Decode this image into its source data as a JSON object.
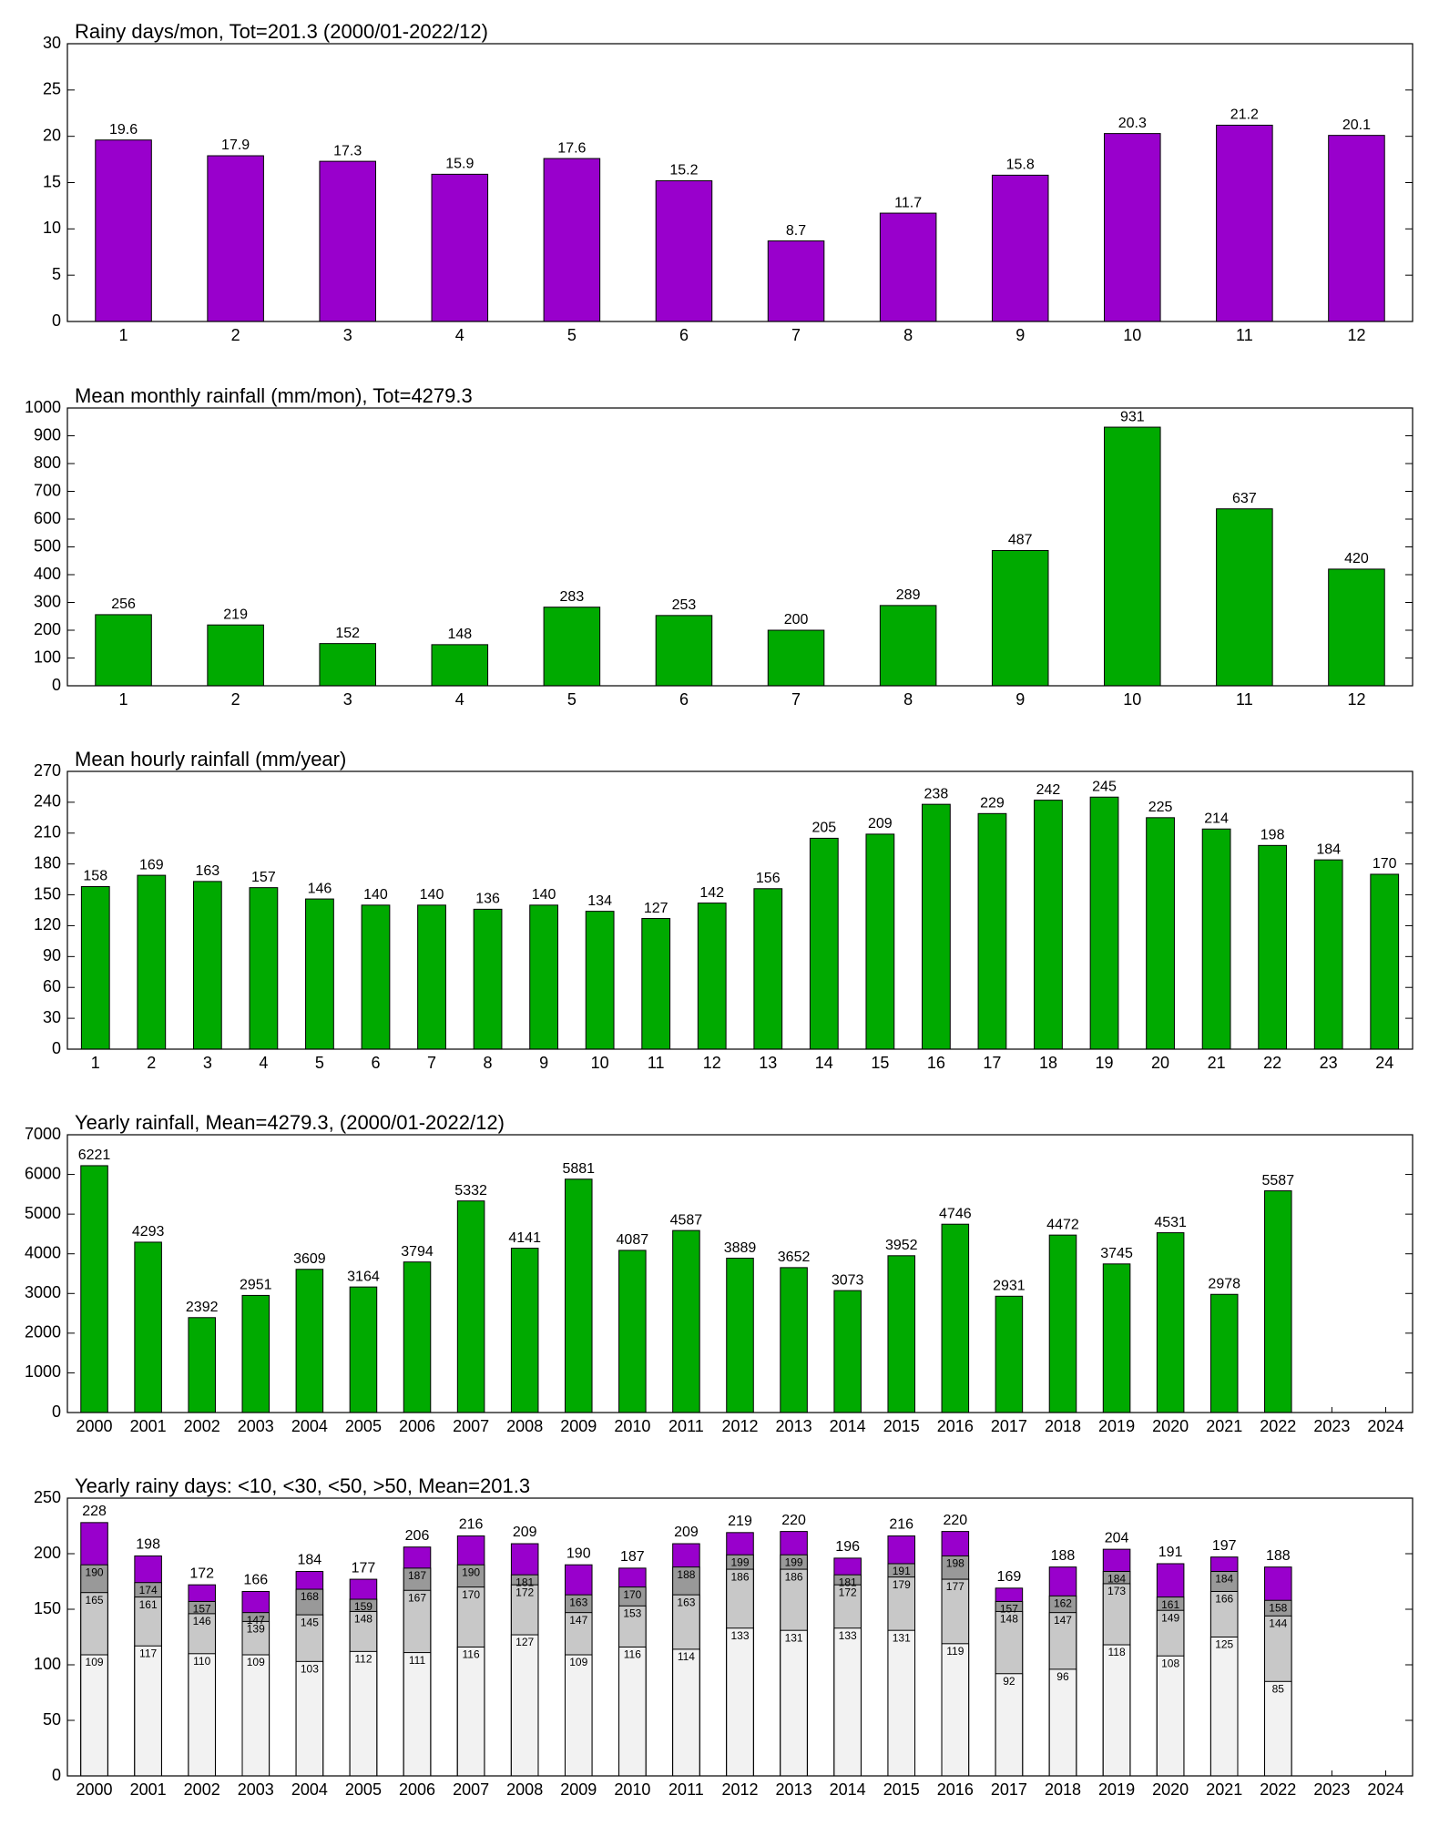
{
  "chart_data": [
    {
      "type": "bar",
      "title": "Rainy days/mon, Tot=201.3 (2000/01-2022/12)",
      "categories": [
        "1",
        "2",
        "3",
        "4",
        "5",
        "6",
        "7",
        "8",
        "9",
        "10",
        "11",
        "12"
      ],
      "values": [
        19.6,
        17.9,
        17.3,
        15.9,
        17.6,
        15.2,
        8.7,
        11.7,
        15.8,
        20.3,
        21.2,
        20.1
      ],
      "color": "#9900cc",
      "ylim": [
        0,
        30
      ],
      "yticks": [
        0,
        5,
        10,
        15,
        20,
        25,
        30
      ]
    },
    {
      "type": "bar",
      "title": "Mean monthly rainfall (mm/mon), Tot=4279.3",
      "categories": [
        "1",
        "2",
        "3",
        "4",
        "5",
        "6",
        "7",
        "8",
        "9",
        "10",
        "11",
        "12"
      ],
      "values": [
        256,
        219,
        152,
        148,
        283,
        253,
        200,
        289,
        487,
        931,
        637,
        420
      ],
      "color": "#00aa00",
      "ylim": [
        0,
        1000
      ],
      "yticks": [
        0,
        100,
        200,
        300,
        400,
        500,
        600,
        700,
        800,
        900,
        1000
      ]
    },
    {
      "type": "bar",
      "title": "Mean hourly rainfall (mm/year)",
      "categories": [
        "1",
        "2",
        "3",
        "4",
        "5",
        "6",
        "7",
        "8",
        "9",
        "10",
        "11",
        "12",
        "13",
        "14",
        "15",
        "16",
        "17",
        "18",
        "19",
        "20",
        "21",
        "22",
        "23",
        "24"
      ],
      "values": [
        158,
        169,
        163,
        157,
        146,
        140,
        140,
        136,
        140,
        134,
        127,
        142,
        156,
        205,
        209,
        238,
        229,
        242,
        245,
        225,
        214,
        198,
        184,
        170
      ],
      "color": "#00aa00",
      "ylim": [
        0,
        270
      ],
      "yticks": [
        0,
        30,
        60,
        90,
        120,
        150,
        180,
        210,
        240,
        270
      ]
    },
    {
      "type": "bar",
      "title": "Yearly rainfall, Mean=4279.3, (2000/01-2022/12)",
      "categories": [
        "2000",
        "2001",
        "2002",
        "2003",
        "2004",
        "2005",
        "2006",
        "2007",
        "2008",
        "2009",
        "2010",
        "2011",
        "2012",
        "2013",
        "2014",
        "2015",
        "2016",
        "2017",
        "2018",
        "2019",
        "2020",
        "2021",
        "2022",
        "2023",
        "2024"
      ],
      "values": [
        6221,
        4293,
        2392,
        2951,
        3609,
        3164,
        3794,
        5332,
        4141,
        5881,
        4087,
        4587,
        3889,
        3652,
        3073,
        3952,
        4746,
        2931,
        4472,
        3745,
        4531,
        2978,
        5587,
        null,
        null
      ],
      "color": "#00aa00",
      "ylim": [
        0,
        7000
      ],
      "yticks": [
        0,
        1000,
        2000,
        3000,
        4000,
        5000,
        6000,
        7000
      ]
    },
    {
      "type": "bar",
      "title": "Yearly rainy days: <10, <30, <50, >50, Mean=201.3",
      "categories": [
        "2000",
        "2001",
        "2002",
        "2003",
        "2004",
        "2005",
        "2006",
        "2007",
        "2008",
        "2009",
        "2010",
        "2011",
        "2012",
        "2013",
        "2014",
        "2015",
        "2016",
        "2017",
        "2018",
        "2019",
        "2020",
        "2021",
        "2022",
        "2023",
        "2024"
      ],
      "series": [
        {
          "color": "#9900cc",
          "values": [
            228,
            198,
            172,
            166,
            184,
            177,
            206,
            216,
            209,
            190,
            187,
            209,
            219,
            220,
            196,
            216,
            220,
            169,
            188,
            204,
            191,
            197,
            188,
            null,
            null
          ]
        },
        {
          "color": "#999999",
          "values": [
            190,
            174,
            157,
            147,
            168,
            159,
            187,
            190,
            181,
            163,
            170,
            188,
            199,
            199,
            181,
            191,
            198,
            157,
            162,
            184,
            161,
            184,
            158,
            null,
            null
          ]
        },
        {
          "color": "#c8c8c8",
          "values": [
            165,
            161,
            146,
            139,
            145,
            148,
            167,
            170,
            172,
            147,
            153,
            163,
            186,
            186,
            172,
            179,
            177,
            148,
            147,
            173,
            149,
            166,
            144,
            null,
            null
          ]
        },
        {
          "color": "#f2f2f2",
          "values": [
            109,
            117,
            110,
            109,
            103,
            112,
            111,
            116,
            127,
            109,
            116,
            114,
            133,
            131,
            133,
            131,
            119,
            92,
            96,
            118,
            108,
            125,
            85,
            null,
            null
          ]
        }
      ],
      "ylim": [
        0,
        250
      ],
      "yticks": [
        0,
        50,
        100,
        150,
        200,
        250
      ]
    }
  ]
}
